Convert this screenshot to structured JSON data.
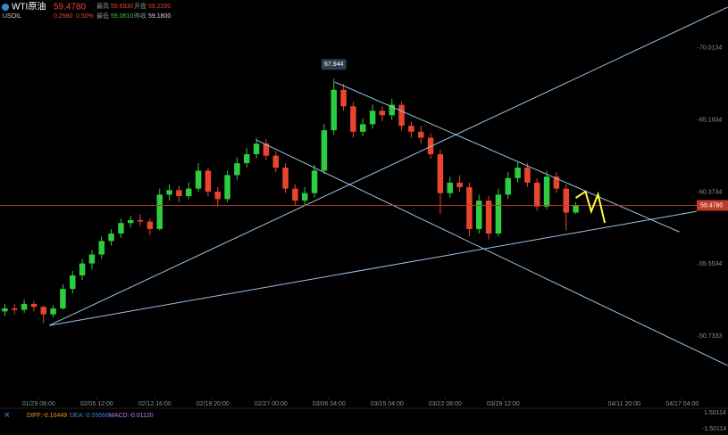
{
  "header": {
    "name": "WTI原油",
    "symbol": "USOIL",
    "change": "0.2980",
    "change_pct": "0.50%",
    "high_label": "最高",
    "high": "59.6930",
    "open_label": "开盘",
    "open": "59.2200",
    "low_label": "最低",
    "low": "59.0610",
    "prev_close_label": "昨收",
    "prev_close": "59.1800"
  },
  "chart_data": {
    "type": "candlestick",
    "up_color": "#2ecc40",
    "down_color": "#e8442e",
    "candles": [
      [
        52.4,
        52.9,
        52.1,
        52.6
      ],
      [
        52.6,
        52.9,
        52.2,
        52.5
      ],
      [
        52.5,
        53.2,
        52.3,
        52.9
      ],
      [
        52.9,
        53.1,
        52.4,
        52.7
      ],
      [
        52.7,
        52.8,
        51.6,
        52.2
      ],
      [
        52.2,
        52.8,
        52.0,
        52.6
      ],
      [
        52.6,
        54.2,
        52.5,
        53.9
      ],
      [
        53.9,
        55.1,
        53.6,
        54.8
      ],
      [
        54.8,
        55.9,
        54.5,
        55.6
      ],
      [
        55.6,
        56.5,
        55.2,
        56.2
      ],
      [
        56.2,
        57.4,
        55.9,
        57.1
      ],
      [
        57.1,
        57.9,
        56.8,
        57.6
      ],
      [
        57.6,
        58.6,
        57.3,
        58.3
      ],
      [
        58.3,
        58.8,
        58.0,
        58.5
      ],
      [
        58.5,
        58.9,
        58.1,
        58.4
      ],
      [
        58.4,
        58.6,
        57.5,
        57.9
      ],
      [
        57.9,
        60.6,
        57.8,
        60.2
      ],
      [
        60.2,
        60.9,
        59.8,
        60.5
      ],
      [
        60.5,
        60.8,
        59.7,
        60.1
      ],
      [
        60.1,
        61.0,
        59.9,
        60.6
      ],
      [
        60.6,
        62.3,
        60.4,
        61.8
      ],
      [
        61.8,
        62.0,
        60.1,
        60.4
      ],
      [
        60.4,
        60.7,
        59.4,
        59.9
      ],
      [
        59.9,
        61.8,
        59.7,
        61.5
      ],
      [
        61.5,
        62.7,
        61.2,
        62.3
      ],
      [
        62.3,
        63.3,
        62.0,
        62.9
      ],
      [
        62.9,
        64.0,
        62.6,
        63.6
      ],
      [
        63.6,
        63.9,
        62.5,
        62.8
      ],
      [
        62.8,
        63.1,
        61.7,
        62.0
      ],
      [
        62.0,
        62.3,
        60.3,
        60.6
      ],
      [
        60.6,
        60.9,
        59.5,
        59.8
      ],
      [
        59.8,
        60.7,
        59.5,
        60.3
      ],
      [
        60.3,
        62.2,
        60.0,
        61.8
      ],
      [
        61.8,
        64.9,
        61.6,
        64.5
      ],
      [
        64.5,
        67.944,
        64.2,
        67.2
      ],
      [
        67.2,
        67.6,
        65.8,
        66.1
      ],
      [
        66.1,
        66.4,
        64.0,
        64.4
      ],
      [
        64.4,
        65.3,
        64.1,
        64.9
      ],
      [
        64.9,
        66.2,
        64.6,
        65.8
      ],
      [
        65.8,
        66.1,
        65.1,
        65.5
      ],
      [
        65.5,
        66.6,
        65.2,
        66.2
      ],
      [
        66.2,
        66.4,
        64.5,
        64.8
      ],
      [
        64.8,
        65.1,
        64.0,
        64.4
      ],
      [
        64.4,
        64.8,
        63.6,
        64.0
      ],
      [
        64.0,
        64.3,
        62.6,
        62.9
      ],
      [
        62.9,
        63.2,
        58.9,
        60.3
      ],
      [
        60.3,
        61.4,
        60.0,
        61.0
      ],
      [
        61.0,
        61.5,
        60.4,
        60.7
      ],
      [
        60.7,
        61.0,
        57.4,
        57.9
      ],
      [
        57.9,
        60.2,
        57.6,
        59.8
      ],
      [
        59.8,
        60.1,
        57.2,
        57.6
      ],
      [
        57.6,
        60.6,
        57.4,
        60.2
      ],
      [
        60.2,
        61.7,
        59.9,
        61.3
      ],
      [
        61.3,
        62.4,
        61.0,
        62.0
      ],
      [
        62.0,
        62.3,
        60.7,
        61.0
      ],
      [
        61.0,
        61.3,
        59.1,
        59.4
      ],
      [
        59.4,
        61.8,
        59.2,
        61.4
      ],
      [
        61.4,
        61.7,
        60.3,
        60.6
      ],
      [
        60.6,
        60.9,
        57.8,
        59.0
      ],
      [
        59.0,
        59.693,
        58.9,
        59.478
      ]
    ],
    "peak_index": 34,
    "xlim": [
      0,
      72
    ],
    "ylim": [
      47.0,
      73.2
    ],
    "yticks": [
      70.0134,
      65.1934,
      60.3734,
      55.5534,
      50.7333
    ],
    "xticks": [
      {
        "value": 4,
        "label": "01/29 08:00"
      },
      {
        "value": 10,
        "label": "02/05 12:00"
      },
      {
        "value": 16,
        "label": "02/12 16:00"
      },
      {
        "value": 22,
        "label": "02/19 20:00"
      },
      {
        "value": 28,
        "label": "02/27 00:00"
      },
      {
        "value": 34,
        "label": "03/06 04:00"
      },
      {
        "value": 40,
        "label": "03/15 04:00"
      },
      {
        "value": 46,
        "label": "03/22 08:00"
      },
      {
        "value": 52,
        "label": "03/29 12:00"
      },
      {
        "value": 64.5,
        "label": "04/11 20:00"
      },
      {
        "value": 70.5,
        "label": "04/17 04:00"
      }
    ],
    "price_line": {
      "value": 59.478,
      "label": "59.4780",
      "color": "#c0392b"
    },
    "trendlines": {
      "color": "#9cc3e6",
      "x": [
        [
          5.08,
          75.2
        ],
        [
          5.08,
          72
        ],
        [
          34.6,
          70.2
        ],
        [
          26.5,
          75.2
        ]
      ],
      "y": [
        [
          51.46,
          72.72
        ],
        [
          51.46,
          59.08
        ],
        [
          67.72,
          57.71
        ],
        [
          63.85,
          48.78
        ]
      ]
    },
    "forecast": {
      "color": "#ffff33",
      "x": [
        59.5,
        60.5,
        61.1,
        61.8,
        62.5
      ],
      "y": [
        59.98,
        60.4,
        59.08,
        60.22,
        58.31
      ]
    }
  },
  "macd": {
    "diff": "DIFF:-0.10449",
    "dea": "DEA:-0.09568",
    "macd": "MACD:-0.01120",
    "top": "1.50114",
    "bottom": "-1.50114"
  }
}
